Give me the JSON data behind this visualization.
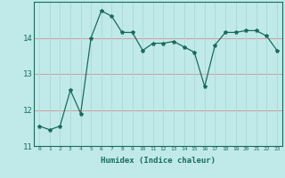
{
  "x": [
    0,
    1,
    2,
    3,
    4,
    5,
    6,
    7,
    8,
    9,
    10,
    11,
    12,
    13,
    14,
    15,
    16,
    17,
    18,
    19,
    20,
    21,
    22,
    23
  ],
  "y": [
    11.55,
    11.45,
    11.55,
    12.55,
    11.9,
    14.0,
    14.75,
    14.6,
    14.15,
    14.15,
    13.65,
    13.85,
    13.85,
    13.9,
    13.75,
    13.6,
    12.65,
    13.8,
    14.15,
    14.15,
    14.2,
    14.2,
    14.05,
    13.65
  ],
  "line_color": "#1a6b5a",
  "marker": "*",
  "marker_size": 3,
  "background_color": "#c0eaea",
  "hgrid_color": "#d09090",
  "vgrid_color": "#b0d8d8",
  "xlabel": "Humidex (Indice chaleur)",
  "xlim": [
    -0.5,
    23.5
  ],
  "ylim": [
    11.0,
    15.0
  ],
  "yticks": [
    11,
    12,
    13,
    14
  ],
  "xticks": [
    0,
    1,
    2,
    3,
    4,
    5,
    6,
    7,
    8,
    9,
    10,
    11,
    12,
    13,
    14,
    15,
    16,
    17,
    18,
    19,
    20,
    21,
    22,
    23
  ]
}
